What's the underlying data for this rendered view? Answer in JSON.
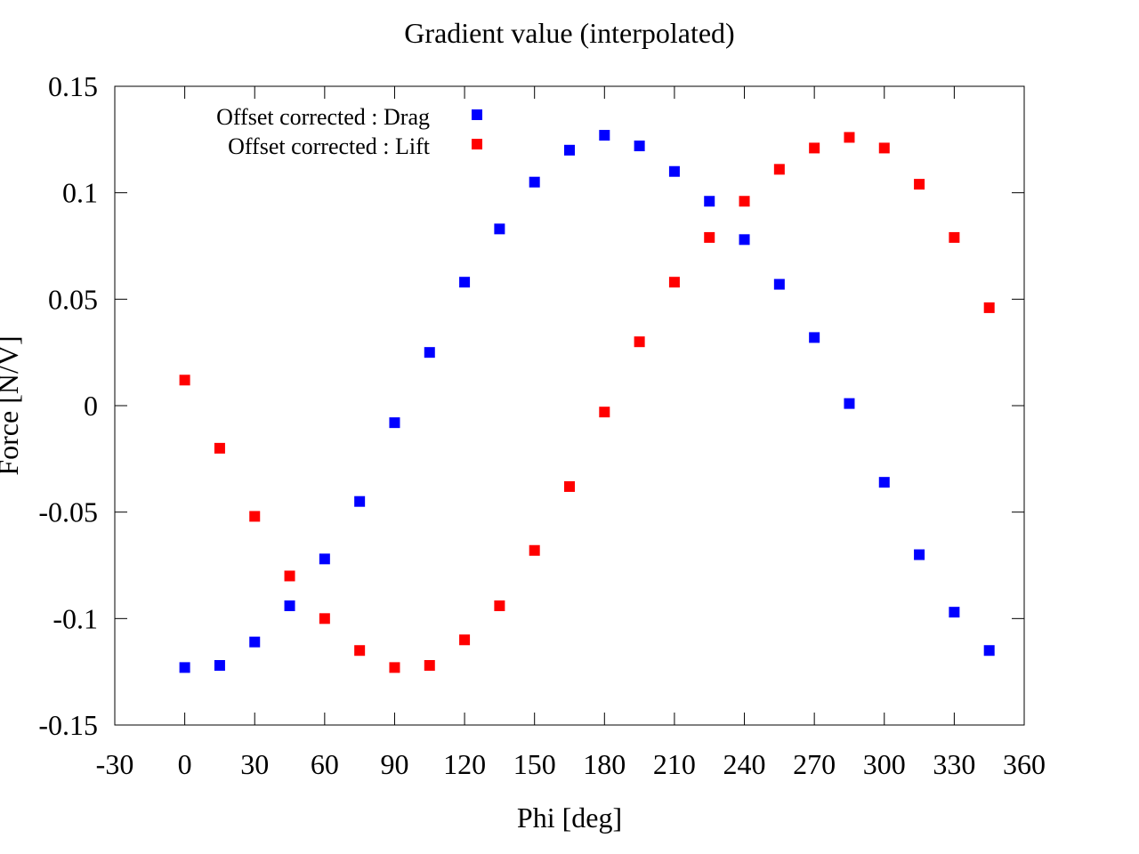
{
  "chart_data": {
    "type": "scatter",
    "title": "Gradient value (interpolated)",
    "xlabel": "Phi [deg]",
    "ylabel": "Force [N/V]",
    "xlim": [
      -30,
      360
    ],
    "ylim": [
      -0.15,
      0.15
    ],
    "x_ticks": [
      "-30",
      "0",
      "30",
      "60",
      "90",
      "120",
      "150",
      "180",
      "210",
      "240",
      "270",
      "300",
      "330",
      "360"
    ],
    "y_ticks": [
      "0.15",
      "0.1",
      "0.05",
      "0",
      "-0.05",
      "-0.1",
      "-0.15"
    ],
    "grid": false,
    "legend_position": "top-left",
    "marker": "square",
    "x": [
      0,
      15,
      30,
      45,
      60,
      75,
      90,
      105,
      120,
      135,
      150,
      165,
      180,
      195,
      210,
      225,
      240,
      255,
      270,
      285,
      300,
      315,
      330,
      345
    ],
    "series": [
      {
        "name": "Offset corrected : Drag",
        "color": "#0000ff",
        "values": [
          -0.123,
          -0.122,
          -0.111,
          -0.094,
          -0.072,
          -0.045,
          -0.008,
          0.025,
          0.058,
          0.083,
          0.105,
          0.12,
          0.127,
          0.122,
          0.11,
          0.096,
          0.078,
          0.057,
          0.032,
          0.001,
          -0.036,
          -0.07,
          -0.097,
          -0.115
        ]
      },
      {
        "name": "Offset corrected : Lift",
        "color": "#ff0000",
        "values": [
          0.012,
          -0.02,
          -0.052,
          -0.08,
          -0.1,
          -0.115,
          -0.123,
          -0.122,
          -0.11,
          -0.094,
          -0.068,
          -0.038,
          -0.003,
          0.03,
          0.058,
          0.079,
          0.096,
          0.111,
          0.121,
          0.126,
          0.121,
          0.104,
          0.079,
          0.046
        ]
      }
    ]
  }
}
